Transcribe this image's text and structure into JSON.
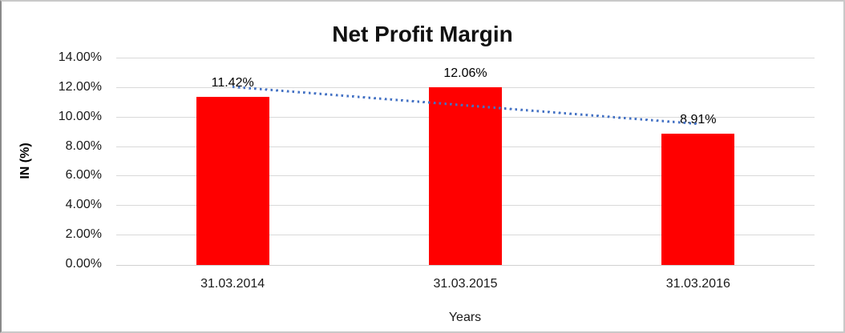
{
  "chart_data": {
    "type": "bar",
    "title": "Net Profit Margin",
    "categories": [
      "31.03.2014",
      "31.03.2015",
      "31.03.2016"
    ],
    "values": [
      11.42,
      12.06,
      8.91
    ],
    "data_labels": [
      "11.42%",
      "12.06%",
      "8.91%"
    ],
    "xlabel": "Years",
    "ylabel": "IN (%)",
    "ylim": [
      0,
      14
    ],
    "ytick_step": 2,
    "ytick_labels": [
      "0.00%",
      "2.00%",
      "4.00%",
      "6.00%",
      "8.00%",
      "10.00%",
      "12.00%",
      "14.00%"
    ],
    "grid": true,
    "legend": "none",
    "bar_color": "#FF0000",
    "gridline_color": "#D9D9D9",
    "trendline": {
      "type": "linear",
      "style": "dotted",
      "color": "#4472C4",
      "start_value": 12.05,
      "end_value": 9.54
    }
  }
}
